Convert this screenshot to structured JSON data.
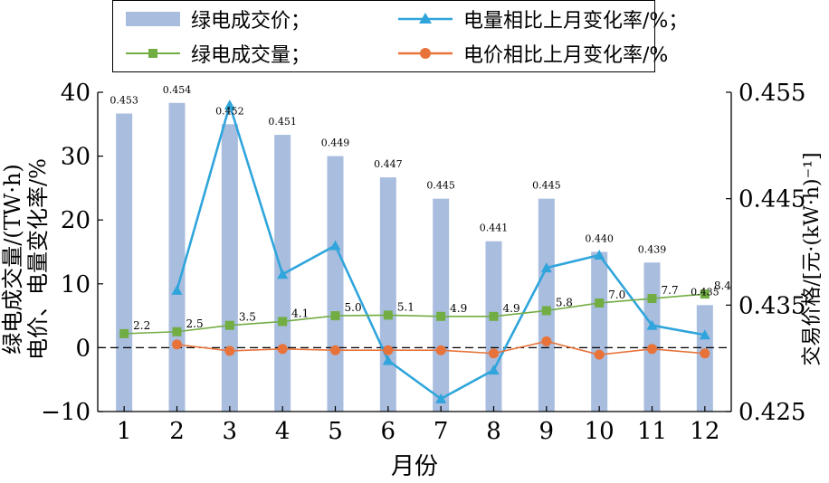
{
  "chart_data": {
    "type": "bar+line",
    "categories": [
      "1",
      "2",
      "3",
      "4",
      "5",
      "6",
      "7",
      "8",
      "9",
      "10",
      "11",
      "12"
    ],
    "xlabel": "月份",
    "ylabel_left_line1": "绿电成交量/(TW·h)",
    "ylabel_left_line2": "电价、电量变化率/%",
    "ylabel_right": "交易价格/[元·(kW·h)⁻¹]",
    "left_axis": {
      "min": -10,
      "max": 40,
      "ticks": [
        -10,
        0,
        10,
        20,
        30,
        40
      ]
    },
    "right_axis": {
      "min": 0.425,
      "max": 0.455,
      "ticks": [
        "0.425",
        "0.435",
        "0.445",
        "0.455"
      ]
    },
    "bar_series": {
      "name": "绿电成交价；",
      "axis": "right",
      "color": "#a9bddf",
      "values": [
        0.453,
        0.454,
        0.452,
        0.451,
        0.449,
        0.447,
        0.445,
        0.441,
        0.445,
        0.44,
        0.439,
        0.435
      ],
      "labels": [
        "0.453",
        "0.454",
        "0.452",
        "0.451",
        "0.449",
        "0.447",
        "0.445",
        "0.441",
        "0.445",
        "0.440",
        "0.439",
        "0.435"
      ]
    },
    "line_series": [
      {
        "name": "电量相比上月变化率/%；",
        "axis": "left",
        "color": "#2fa5dc",
        "marker": "triangle",
        "values": [
          null,
          9,
          38,
          11.5,
          16,
          -2,
          -8,
          -3.5,
          12.5,
          14.5,
          3.5,
          2
        ]
      },
      {
        "name": "绿电成交量；",
        "axis": "left",
        "color": "#72ad44",
        "marker": "square",
        "values": [
          2.2,
          2.5,
          3.5,
          4.1,
          5.0,
          5.1,
          4.9,
          4.9,
          5.8,
          7.0,
          7.7,
          8.4
        ],
        "labels": [
          "2.2",
          "2.5",
          "3.5",
          "4.1",
          "5.0",
          "5.1",
          "4.9",
          "4.9",
          "5.8",
          "7.0",
          "7.7",
          "8.4"
        ]
      },
      {
        "name": "电价相比上月变化率/%",
        "axis": "left",
        "color": "#e8733a",
        "marker": "circle",
        "values": [
          null,
          0.5,
          -0.5,
          -0.2,
          -0.4,
          -0.4,
          -0.4,
          -0.9,
          1.0,
          -1.1,
          -0.2,
          -0.9
        ]
      }
    ],
    "reference_line": {
      "value": 0,
      "style": "dashed"
    }
  }
}
